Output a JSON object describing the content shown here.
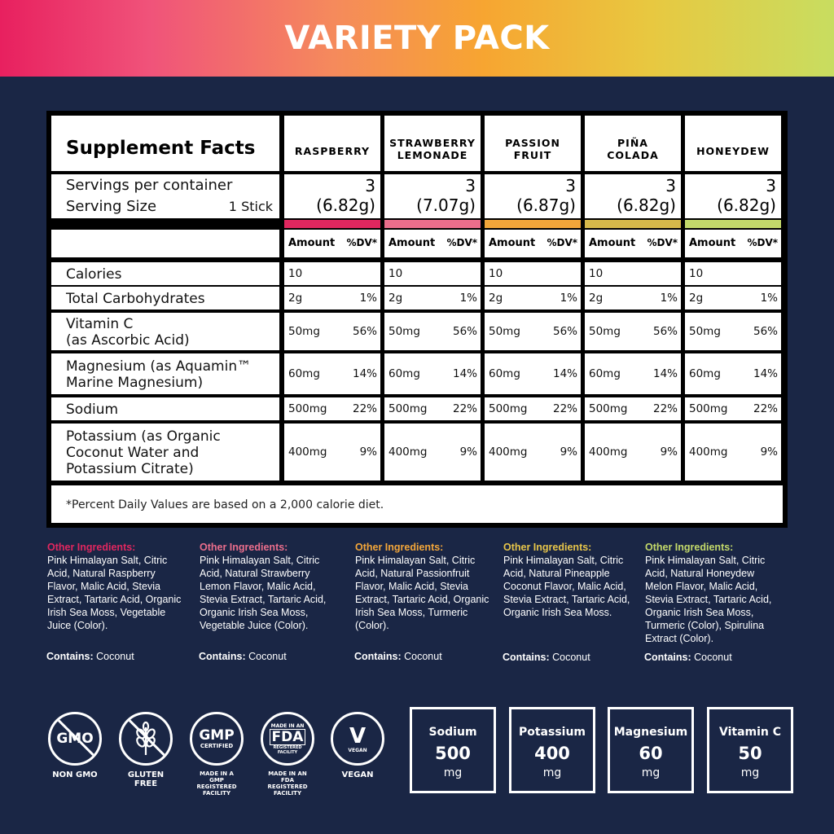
{
  "banner": {
    "title": "VARIETY PACK"
  },
  "facts": {
    "title": "Supplement Facts",
    "servings_label": "Servings per container",
    "serving_size_label": "Serving Size",
    "serving_size_value": "1 Stick",
    "amount_label": "Amount",
    "dv_label": "%DV*",
    "flavors": [
      {
        "name_line1": "RASPBERRY",
        "name_line2": "",
        "servings": "3",
        "weight": "(6.82g)",
        "color": "#e0275f"
      },
      {
        "name_line1": "STRAWBERRY",
        "name_line2": "LEMONADE",
        "servings": "3",
        "weight": "(7.07g)",
        "color": "#ea6e8c"
      },
      {
        "name_line1": "PASSION",
        "name_line2": "FRUIT",
        "servings": "3",
        "weight": "(6.87g)",
        "color": "#f3a63a"
      },
      {
        "name_line1": "PIÑA",
        "name_line2": "COLADA",
        "servings": "3",
        "weight": "(6.82g)",
        "color": "#d6b84a"
      },
      {
        "name_line1": "HONEYDEW",
        "name_line2": "",
        "servings": "3",
        "weight": "(6.82g)",
        "color": "#c3d96a"
      }
    ],
    "nutrients": [
      {
        "name_line1": "Calories",
        "name_line2": "",
        "name_line3": "",
        "amount": "10",
        "dv": ""
      },
      {
        "name_line1": "Total Carbohydrates",
        "name_line2": "",
        "name_line3": "",
        "amount": "2g",
        "dv": "1%"
      },
      {
        "name_line1": "Vitamin C",
        "name_line2": "(as Ascorbic Acid)",
        "name_line3": "",
        "amount": "50mg",
        "dv": "56%"
      },
      {
        "name_line1": "Magnesium (as Aquamin™",
        "name_line2": "Marine Magnesium)",
        "name_line3": "",
        "amount": "60mg",
        "dv": "14%"
      },
      {
        "name_line1": "Sodium",
        "name_line2": "",
        "name_line3": "",
        "amount": "500mg",
        "dv": "22%"
      },
      {
        "name_line1": "Potassium (as Organic",
        "name_line2": "Coconut Water and",
        "name_line3": "Potassium Citrate)",
        "amount": "400mg",
        "dv": "9%"
      }
    ],
    "footnote": "*Percent Daily Values are based on a 2,000 calorie diet."
  },
  "ingredients": [
    {
      "heading": "Other Ingredients:",
      "color": "#e0275f",
      "text": "Pink Himalayan Salt, Citric Acid, Natural Raspberry Flavor, Malic Acid, Stevia Extract, Tartaric Acid, Organic Irish Sea Moss, Vegetable Juice (Color).",
      "contains_label": "Contains:",
      "contains_value": "Coconut"
    },
    {
      "heading": "Other Ingredients:",
      "color": "#ea6e8c",
      "text": "Pink Himalayan Salt, Citric Acid, Natural Strawberry Lemon Flavor, Malic Acid, Stevia Extract, Tartaric Acid, Organic Irish Sea Moss, Vegetable Juice (Color).",
      "contains_label": "Contains:",
      "contains_value": "Coconut"
    },
    {
      "heading": "Other Ingredients:",
      "color": "#f3a63a",
      "text": "Pink Himalayan Salt, Citric Acid, Natural Passionfruit Flavor, Malic Acid, Stevia Extract, Tartaric Acid, Organic Irish Sea Moss, Turmeric (Color).",
      "contains_label": "Contains:",
      "contains_value": "Coconut"
    },
    {
      "heading": "Other Ingredients:",
      "color": "#e7c54a",
      "text": "Pink Himalayan Salt, Citric Acid, Natural Pineapple Coconut Flavor, Malic Acid, Stevia Extract, Tartaric Acid, Organic Irish Sea Moss.",
      "contains_label": "Contains:",
      "contains_value": "Coconut"
    },
    {
      "heading": "Other Ingredients:",
      "color": "#c3d96a",
      "text": "Pink Himalayan Salt, Citric Acid, Natural Honeydew Melon Flavor, Malic Acid, Stevia Extract, Tartaric Acid, Organic Irish Sea Moss, Turmeric (Color), Spirulina Extract (Color).",
      "contains_label": "Contains:",
      "contains_value": "Coconut"
    }
  ],
  "badges": {
    "gmo_icon_text": "GMO",
    "gmo_caption": "NON GMO",
    "gluten_caption_line1": "GLUTEN",
    "gluten_caption_line2": "FREE",
    "gmp_big": "GMP",
    "gmp_small": "CERTIFIED",
    "gmp_caption_line1": "MADE IN A",
    "gmp_caption_line2": "GMP",
    "gmp_caption_line3": "REGISTERED",
    "gmp_caption_line4": "FACILITY",
    "fda_top": "MADE IN AN",
    "fda_big": "FDA",
    "fda_sub1": "REGISTERED",
    "fda_sub2": "FACILITY",
    "fda_caption_line1": "MADE IN AN",
    "fda_caption_line2": "FDA",
    "fda_caption_line3": "REGISTERED",
    "fda_caption_line4": "FACILITY",
    "vegan_letter": "V",
    "vegan_inner": "VEGAN",
    "vegan_caption": "VEGAN"
  },
  "minerals": [
    {
      "name": "Sodium",
      "value": "500",
      "unit": "mg"
    },
    {
      "name": "Potassium",
      "value": "400",
      "unit": "mg"
    },
    {
      "name": "Magnesium",
      "value": "60",
      "unit": "mg"
    },
    {
      "name": "Vitamin C",
      "value": "50",
      "unit": "mg"
    }
  ]
}
